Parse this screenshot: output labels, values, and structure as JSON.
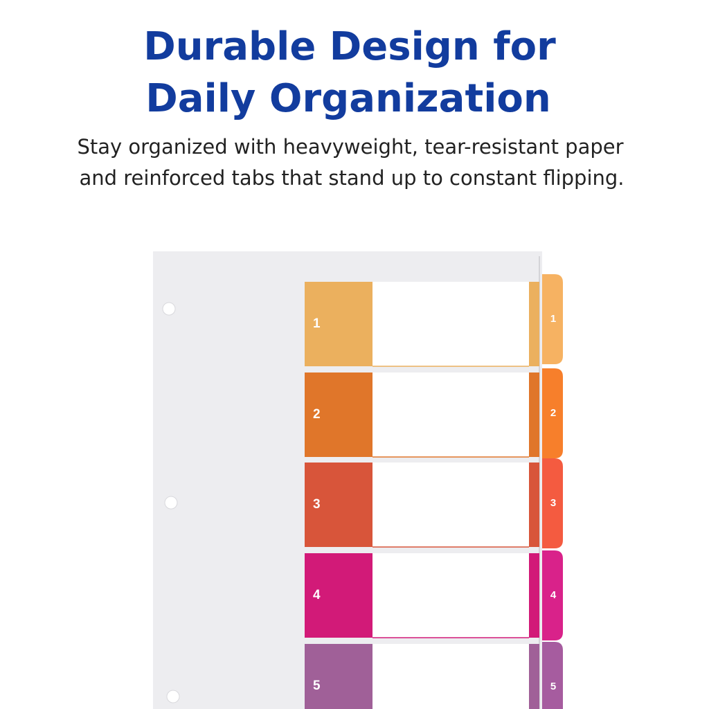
{
  "header": {
    "title_lines": [
      "Durable Design for",
      "Daily Organization"
    ],
    "subtitle_lines": [
      "Stay organized with heavyweight, tear-resistant paper",
      "and reinforced tabs that stand up to constant flipping."
    ]
  },
  "tabs": [
    {
      "label": "1"
    },
    {
      "label": "2"
    },
    {
      "label": "3"
    },
    {
      "label": "4"
    },
    {
      "label": "5"
    }
  ]
}
